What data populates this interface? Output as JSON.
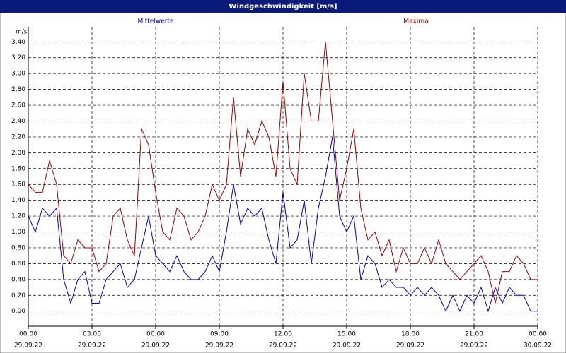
{
  "chart_data": {
    "type": "line",
    "title": "Windgeschwindigkeit [m/s]",
    "y_unit": "m/s",
    "x": [
      0,
      20,
      40,
      60,
      80,
      100,
      120,
      140,
      160,
      180,
      200,
      220,
      240,
      260,
      280,
      300,
      320,
      340,
      360,
      380,
      400,
      420,
      440,
      460,
      480,
      500,
      520,
      540,
      560,
      580,
      600,
      620,
      640,
      660,
      680,
      700,
      720,
      740,
      760,
      780,
      800,
      820,
      840,
      860,
      880,
      900,
      920,
      940,
      960,
      980,
      1000,
      1020,
      1040,
      1060,
      1080,
      1100,
      1120,
      1140,
      1160,
      1180,
      1200,
      1220,
      1240,
      1260,
      1280,
      1300,
      1320,
      1340,
      1360,
      1380,
      1400,
      1420,
      1440
    ],
    "series": [
      {
        "name": "Mittelwerte",
        "color": "#0000c8",
        "values": [
          1.2,
          1.0,
          1.3,
          1.2,
          1.3,
          0.4,
          0.1,
          0.4,
          0.5,
          0.1,
          0.1,
          0.4,
          0.5,
          0.6,
          0.3,
          0.4,
          0.8,
          1.2,
          0.7,
          0.6,
          0.5,
          0.7,
          0.5,
          0.4,
          0.4,
          0.5,
          0.7,
          0.5,
          1.0,
          1.6,
          1.1,
          1.3,
          1.2,
          1.3,
          0.9,
          0.6,
          1.5,
          0.8,
          0.9,
          1.4,
          0.6,
          1.3,
          1.7,
          2.2,
          1.2,
          1.0,
          1.2,
          0.4,
          0.7,
          0.6,
          0.3,
          0.4,
          0.3,
          0.3,
          0.2,
          0.3,
          0.2,
          0.3,
          0.2,
          0.0,
          0.2,
          0.0,
          0.2,
          0.1,
          0.3,
          0.0,
          0.3,
          0.1,
          0.3,
          0.2,
          0.2,
          0.0,
          0.0
        ]
      },
      {
        "name": "Maxima",
        "color": "#a00000",
        "values": [
          1.6,
          1.5,
          1.5,
          1.9,
          1.6,
          0.7,
          0.6,
          0.9,
          0.8,
          0.8,
          0.5,
          0.6,
          1.2,
          1.3,
          0.9,
          0.7,
          2.3,
          2.1,
          1.5,
          1.0,
          0.9,
          1.3,
          1.2,
          0.9,
          1.0,
          1.2,
          1.6,
          1.4,
          1.6,
          2.7,
          1.7,
          2.3,
          2.1,
          2.4,
          2.2,
          1.7,
          2.9,
          1.8,
          1.6,
          3.0,
          2.4,
          2.4,
          3.4,
          2.4,
          1.4,
          1.8,
          2.3,
          1.3,
          0.9,
          1.0,
          0.7,
          0.9,
          0.5,
          0.8,
          0.6,
          0.6,
          0.8,
          0.6,
          0.9,
          0.6,
          0.5,
          0.4,
          0.5,
          0.6,
          0.7,
          0.5,
          0.1,
          0.5,
          0.5,
          0.7,
          0.6,
          0.4,
          0.4
        ]
      }
    ],
    "xlim": [
      0,
      1440
    ],
    "xticks": [
      {
        "value": 0,
        "label": "00:00"
      },
      {
        "value": 180,
        "label": "03:00"
      },
      {
        "value": 360,
        "label": "06:00"
      },
      {
        "value": 540,
        "label": "09:00"
      },
      {
        "value": 720,
        "label": "12:00"
      },
      {
        "value": 900,
        "label": "15:00"
      },
      {
        "value": 1080,
        "label": "18:00"
      },
      {
        "value": 1260,
        "label": "21:00"
      },
      {
        "value": 1440,
        "label": "00:00"
      }
    ],
    "xtick_dates": [
      "29.09.22",
      "29.09.22",
      "29.09.22",
      "29.09.22",
      "29.09.22",
      "29.09.22",
      "29.09.22",
      "29.09.22",
      "30.09.22"
    ],
    "ylim": [
      -0.19,
      3.59
    ],
    "yticks": [
      {
        "value": 0,
        "label": "0,00"
      },
      {
        "value": 0.2,
        "label": "0,20"
      },
      {
        "value": 0.4,
        "label": "0,40"
      },
      {
        "value": 0.6,
        "label": "0,60"
      },
      {
        "value": 0.8,
        "label": "0,80"
      },
      {
        "value": 1.0,
        "label": "1,00"
      },
      {
        "value": 1.2,
        "label": "1,20"
      },
      {
        "value": 1.4,
        "label": "1,40"
      },
      {
        "value": 1.6,
        "label": "1,60"
      },
      {
        "value": 1.8,
        "label": "1,80"
      },
      {
        "value": 2.0,
        "label": "2,00"
      },
      {
        "value": 2.2,
        "label": "2,20"
      },
      {
        "value": 2.4,
        "label": "2,40"
      },
      {
        "value": 2.6,
        "label": "2,60"
      },
      {
        "value": 2.8,
        "label": "2,80"
      },
      {
        "value": 3.0,
        "label": "3,00"
      },
      {
        "value": 3.2,
        "label": "3,20"
      },
      {
        "value": 3.4,
        "label": "3,40"
      }
    ],
    "grid": true
  }
}
